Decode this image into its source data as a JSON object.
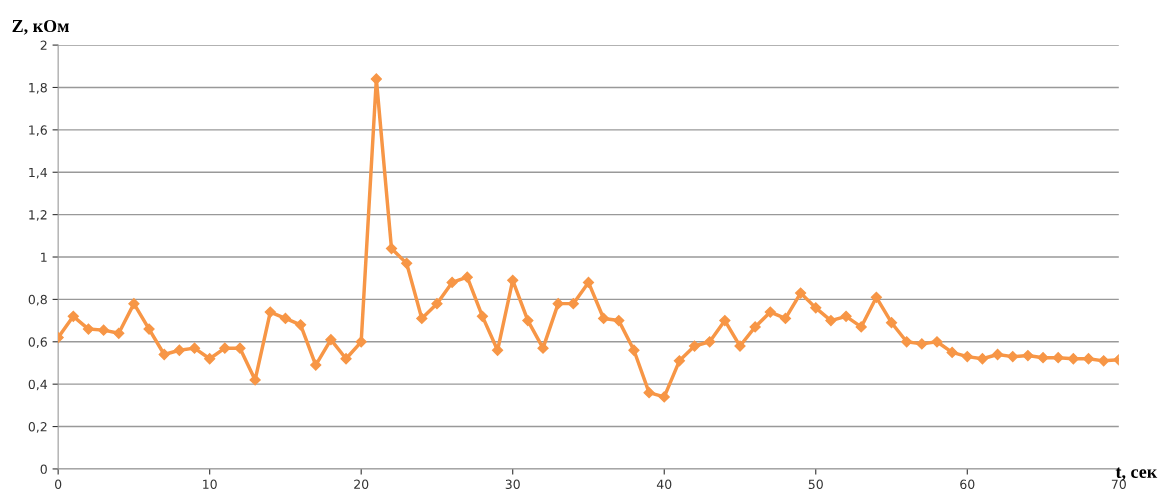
{
  "chart_data": {
    "type": "line",
    "xlabel": "t, сек",
    "ylabel": "Z, кОм",
    "x": [
      0,
      1,
      2,
      3,
      4,
      5,
      6,
      7,
      8,
      9,
      10,
      11,
      12,
      13,
      14,
      15,
      16,
      17,
      18,
      19,
      20,
      21,
      22,
      23,
      24,
      25,
      26,
      27,
      28,
      29,
      30,
      31,
      32,
      33,
      34,
      35,
      36,
      37,
      38,
      39,
      40,
      41,
      42,
      43,
      44,
      45,
      46,
      47,
      48,
      49,
      50,
      51,
      52,
      53,
      54,
      55,
      56,
      57,
      58,
      59,
      60,
      61,
      62,
      63,
      64,
      65,
      66,
      67,
      68,
      69,
      70
    ],
    "series": [
      {
        "color": "#f79646",
        "values": [
          0.62,
          0.72,
          0.66,
          0.655,
          0.64,
          0.78,
          0.66,
          0.54,
          0.56,
          0.57,
          0.52,
          0.57,
          0.57,
          0.42,
          0.74,
          0.71,
          0.68,
          0.49,
          0.61,
          0.52,
          0.6,
          1.84,
          1.04,
          0.97,
          0.71,
          0.78,
          0.88,
          0.905,
          0.72,
          0.56,
          0.89,
          0.7,
          0.57,
          0.78,
          0.78,
          0.88,
          0.71,
          0.7,
          0.56,
          0.36,
          0.34,
          0.51,
          0.58,
          0.6,
          0.7,
          0.58,
          0.67,
          0.74,
          0.71,
          0.83,
          0.76,
          0.7,
          0.72,
          0.67,
          0.81,
          0.69,
          0.6,
          0.59,
          0.6,
          0.55,
          0.53,
          0.52,
          0.54,
          0.53,
          0.535,
          0.525,
          0.525,
          0.52,
          0.52,
          0.51,
          0.515
        ]
      }
    ],
    "xlim": [
      0,
      70
    ],
    "xticks": [
      0,
      10,
      20,
      30,
      40,
      50,
      60,
      70
    ],
    "ylim": [
      0,
      2
    ],
    "yticks": [
      0,
      {
        "value": 0.2,
        "label": "0,2"
      },
      {
        "value": 0.4,
        "label": "0,4"
      },
      {
        "value": 0.6,
        "label": "0,6"
      },
      {
        "value": 0.8,
        "label": "0,8"
      },
      1,
      {
        "value": 1.2,
        "label": "1,2"
      },
      {
        "value": 1.4,
        "label": "1,4"
      },
      {
        "value": 1.6,
        "label": "1,6"
      },
      {
        "value": 1.8,
        "label": "1,8"
      },
      2
    ],
    "grid": "y",
    "marker": "diamond",
    "line_style": "solid",
    "legend": false
  }
}
